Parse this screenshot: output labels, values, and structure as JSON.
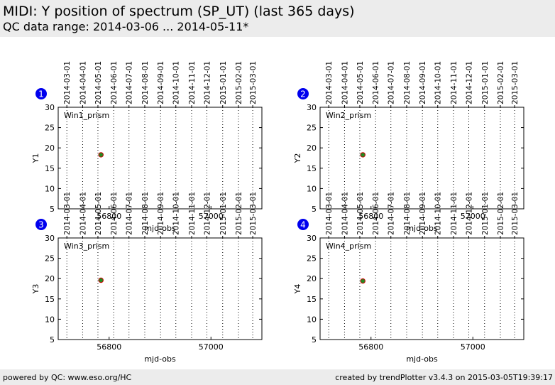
{
  "header": {
    "title": "MIDI: Y position of spectrum (SP_UT) (last 365 days)",
    "subtitle": "QC data range: 2014-03-06 ... 2014-05-11*"
  },
  "footer": {
    "left": "powered by QC: www.eso.org/HC",
    "right": "created by trendPlotter v3.4.3 on 2015-03-05T19:39:17"
  },
  "colors": {
    "badge": "#0000ee",
    "point_fill": "#228b22",
    "point_edge": "#cc0000",
    "header_bg": "#ececec"
  },
  "chart_data": [
    {
      "type": "scatter",
      "badge": "1",
      "label": "Win1_prism",
      "xlabel": "mjd-obs",
      "ylabel": "Y1",
      "xlim": [
        56700,
        57100
      ],
      "ylim": [
        5,
        30
      ],
      "xticks": [
        56800,
        57000
      ],
      "yticks": [
        5,
        10,
        15,
        20,
        25,
        30
      ],
      "date_ticks": [
        {
          "label": "2014-03-01",
          "mjd": 56717
        },
        {
          "label": "2014-04-01",
          "mjd": 56748
        },
        {
          "label": "2014-05-01",
          "mjd": 56778
        },
        {
          "label": "2014-06-01",
          "mjd": 56809
        },
        {
          "label": "2014-07-01",
          "mjd": 56839
        },
        {
          "label": "2014-08-01",
          "mjd": 56870
        },
        {
          "label": "2014-09-01",
          "mjd": 56901
        },
        {
          "label": "2014-10-01",
          "mjd": 56931
        },
        {
          "label": "2014-11-01",
          "mjd": 56962
        },
        {
          "label": "2014-12-01",
          "mjd": 56992
        },
        {
          "label": "2015-01-01",
          "mjd": 57023
        },
        {
          "label": "2015-02-01",
          "mjd": 57054
        },
        {
          "label": "2015-03-01",
          "mjd": 57082
        }
      ],
      "points": [
        {
          "x": 56784,
          "y": 18.3
        }
      ]
    },
    {
      "type": "scatter",
      "badge": "2",
      "label": "Win2_prism",
      "xlabel": "mjd-obs",
      "ylabel": "Y2",
      "xlim": [
        56700,
        57100
      ],
      "ylim": [
        5,
        30
      ],
      "xticks": [
        56800,
        57000
      ],
      "yticks": [
        5,
        10,
        15,
        20,
        25,
        30
      ],
      "date_ticks": [
        {
          "label": "2014-03-01",
          "mjd": 56717
        },
        {
          "label": "2014-04-01",
          "mjd": 56748
        },
        {
          "label": "2014-05-01",
          "mjd": 56778
        },
        {
          "label": "2014-06-01",
          "mjd": 56809
        },
        {
          "label": "2014-07-01",
          "mjd": 56839
        },
        {
          "label": "2014-08-01",
          "mjd": 56870
        },
        {
          "label": "2014-09-01",
          "mjd": 56901
        },
        {
          "label": "2014-10-01",
          "mjd": 56931
        },
        {
          "label": "2014-11-01",
          "mjd": 56962
        },
        {
          "label": "2014-12-01",
          "mjd": 56992
        },
        {
          "label": "2015-01-01",
          "mjd": 57023
        },
        {
          "label": "2015-02-01",
          "mjd": 57054
        },
        {
          "label": "2015-03-01",
          "mjd": 57082
        }
      ],
      "points": [
        {
          "x": 56784,
          "y": 18.3
        }
      ]
    },
    {
      "type": "scatter",
      "badge": "3",
      "label": "Win3_prism",
      "xlabel": "mjd-obs",
      "ylabel": "Y3",
      "xlim": [
        56700,
        57100
      ],
      "ylim": [
        5,
        30
      ],
      "xticks": [
        56800,
        57000
      ],
      "yticks": [
        5,
        10,
        15,
        20,
        25,
        30
      ],
      "date_ticks": [
        {
          "label": "2014-03-01",
          "mjd": 56717
        },
        {
          "label": "2014-04-01",
          "mjd": 56748
        },
        {
          "label": "2014-05-01",
          "mjd": 56778
        },
        {
          "label": "2014-06-01",
          "mjd": 56809
        },
        {
          "label": "2014-07-01",
          "mjd": 56839
        },
        {
          "label": "2014-08-01",
          "mjd": 56870
        },
        {
          "label": "2014-09-01",
          "mjd": 56901
        },
        {
          "label": "2014-10-01",
          "mjd": 56931
        },
        {
          "label": "2014-11-01",
          "mjd": 56962
        },
        {
          "label": "2014-12-01",
          "mjd": 56992
        },
        {
          "label": "2015-01-01",
          "mjd": 57023
        },
        {
          "label": "2015-02-01",
          "mjd": 57054
        },
        {
          "label": "2015-03-01",
          "mjd": 57082
        }
      ],
      "points": [
        {
          "x": 56784,
          "y": 19.6
        }
      ]
    },
    {
      "type": "scatter",
      "badge": "4",
      "label": "Win4_prism",
      "xlabel": "mjd-obs",
      "ylabel": "Y4",
      "xlim": [
        56700,
        57100
      ],
      "ylim": [
        5,
        30
      ],
      "xticks": [
        56800,
        57000
      ],
      "yticks": [
        5,
        10,
        15,
        20,
        25,
        30
      ],
      "date_ticks": [
        {
          "label": "2014-03-01",
          "mjd": 56717
        },
        {
          "label": "2014-04-01",
          "mjd": 56748
        },
        {
          "label": "2014-05-01",
          "mjd": 56778
        },
        {
          "label": "2014-06-01",
          "mjd": 56809
        },
        {
          "label": "2014-07-01",
          "mjd": 56839
        },
        {
          "label": "2014-08-01",
          "mjd": 56870
        },
        {
          "label": "2014-09-01",
          "mjd": 56901
        },
        {
          "label": "2014-10-01",
          "mjd": 56931
        },
        {
          "label": "2014-11-01",
          "mjd": 56962
        },
        {
          "label": "2014-12-01",
          "mjd": 56992
        },
        {
          "label": "2015-01-01",
          "mjd": 57023
        },
        {
          "label": "2015-02-01",
          "mjd": 57054
        },
        {
          "label": "2015-03-01",
          "mjd": 57082
        }
      ],
      "points": [
        {
          "x": 56784,
          "y": 19.4
        }
      ]
    }
  ]
}
